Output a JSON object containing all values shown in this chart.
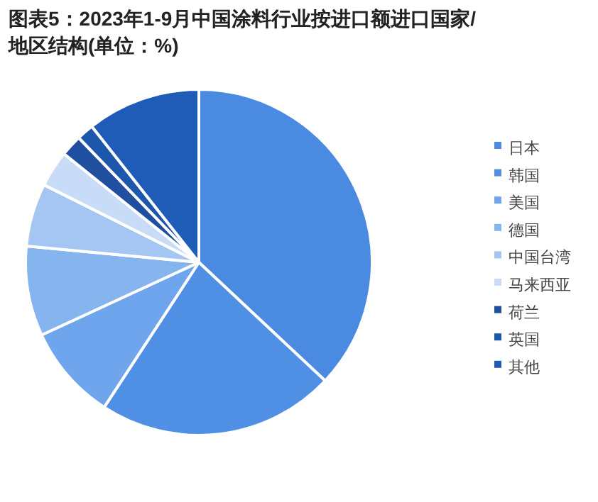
{
  "chart_data": {
    "type": "pie",
    "title": "图表5：2023年1-9月中国涂料行业按进口额进口国家/地区结构(单位：%)",
    "categories": [
      "日本",
      "韩国",
      "美国",
      "德国",
      "中国台湾",
      "马来西亚",
      "荷兰",
      "英国",
      "其他"
    ],
    "values": [
      37.0,
      22.2,
      8.9,
      8.4,
      5.9,
      3.4,
      2.0,
      1.6,
      10.6
    ],
    "colors": [
      "#4a8ae0",
      "#4f8fe4",
      "#6fa5ec",
      "#86b4ef",
      "#a5c6f3",
      "#c8dcf8",
      "#1f4f9e",
      "#1d57ab",
      "#1e5cb8"
    ],
    "legend": "right"
  }
}
